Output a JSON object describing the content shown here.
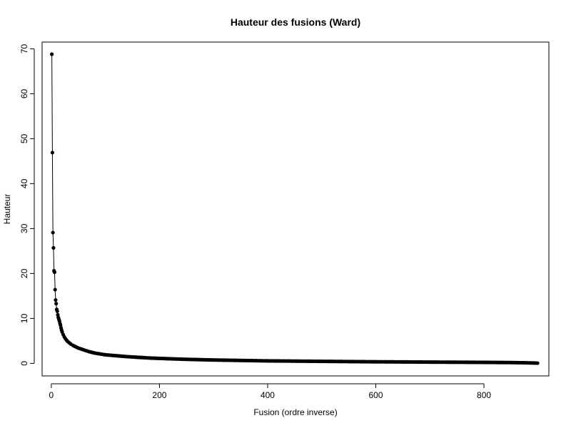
{
  "chart_data": {
    "type": "line",
    "title": "Hauteur des fusions (Ward)",
    "xlabel": "Fusion (ordre inverse)",
    "ylabel": "Hauteur",
    "xlim": [
      -17,
      920
    ],
    "ylim": [
      -2.8,
      71.5
    ],
    "x_ticks": [
      0,
      200,
      400,
      600,
      800
    ],
    "y_ticks": [
      0,
      10,
      20,
      30,
      40,
      50,
      60,
      70
    ],
    "grid": false,
    "legend": "none",
    "marker_color": "#000000",
    "series": [
      {
        "x": [
          1,
          2,
          3,
          4,
          5,
          6,
          7,
          8,
          9,
          10,
          11,
          12,
          13,
          14,
          15,
          16,
          17,
          18,
          19,
          20,
          22,
          24,
          26,
          28,
          30,
          33,
          36,
          40,
          45,
          50,
          55,
          60,
          70,
          80,
          90,
          100,
          120,
          140,
          160,
          180,
          200,
          250,
          300,
          350,
          400,
          450,
          500,
          550,
          600,
          650,
          700,
          750,
          800,
          850,
          880,
          899
        ],
        "y": [
          68.8,
          46.9,
          29.1,
          25.7,
          20.6,
          20.3,
          16.4,
          14.1,
          13.3,
          12.0,
          11.6,
          10.8,
          10.2,
          9.8,
          9.4,
          8.9,
          8.5,
          7.9,
          7.4,
          7.0,
          6.4,
          5.9,
          5.5,
          5.2,
          4.9,
          4.6,
          4.3,
          4.0,
          3.7,
          3.4,
          3.2,
          3.0,
          2.6,
          2.3,
          2.1,
          1.9,
          1.7,
          1.5,
          1.35,
          1.2,
          1.1,
          0.9,
          0.75,
          0.65,
          0.55,
          0.5,
          0.45,
          0.4,
          0.35,
          0.32,
          0.28,
          0.25,
          0.22,
          0.18,
          0.12,
          0.05
        ]
      }
    ]
  }
}
